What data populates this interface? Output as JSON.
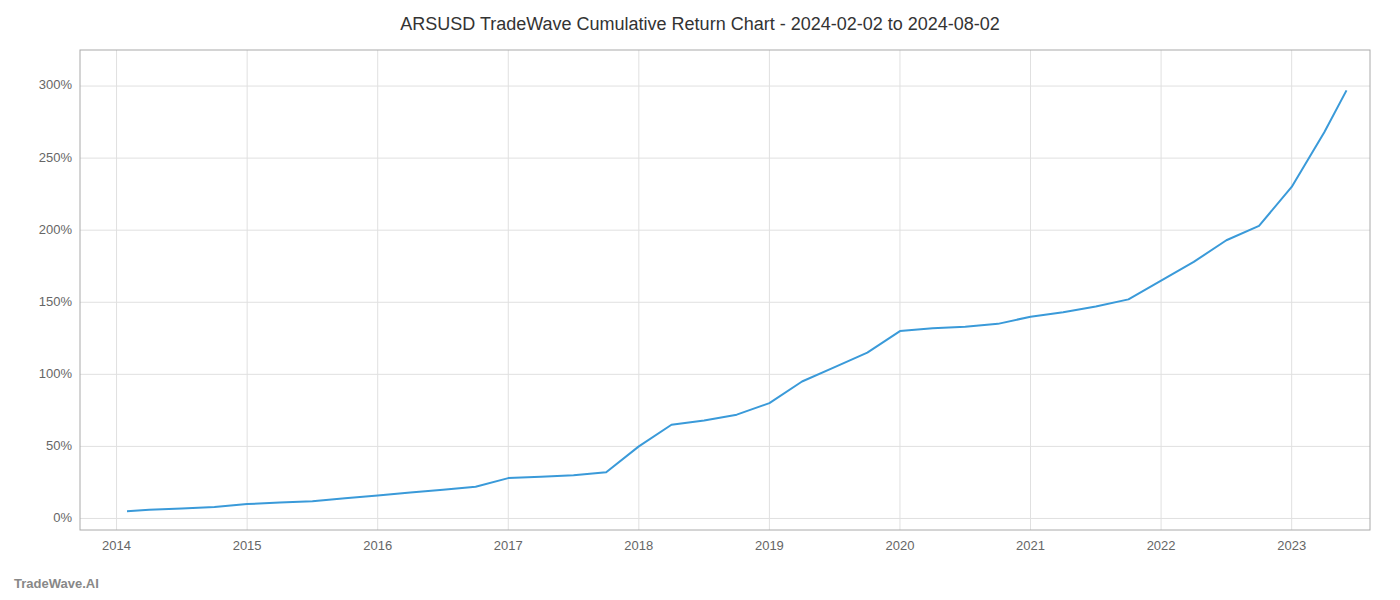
{
  "chart_data": {
    "type": "line",
    "title": "ARSUSD TradeWave Cumulative Return Chart - 2024-02-02 to 2024-08-02",
    "annotations": [
      "TradeWave.AI"
    ],
    "color": "#3a9ad9",
    "grid": true,
    "x": [
      2014.08,
      2014.25,
      2014.5,
      2014.75,
      2015.0,
      2015.25,
      2015.5,
      2015.75,
      2016.0,
      2016.25,
      2016.5,
      2016.75,
      2017.0,
      2017.25,
      2017.5,
      2017.75,
      2018.0,
      2018.25,
      2018.5,
      2018.75,
      2019.0,
      2019.25,
      2019.5,
      2019.75,
      2020.0,
      2020.25,
      2020.5,
      2020.75,
      2021.0,
      2021.25,
      2021.5,
      2021.75,
      2022.0,
      2022.25,
      2022.5,
      2022.75,
      2023.0,
      2023.25,
      2023.42
    ],
    "values": [
      5,
      6,
      7,
      8,
      10,
      11,
      12,
      14,
      16,
      18,
      20,
      22,
      28,
      29,
      30,
      32,
      50,
      65,
      68,
      72,
      80,
      95,
      105,
      115,
      130,
      132,
      133,
      135,
      140,
      143,
      147,
      152,
      165,
      178,
      193,
      203,
      230,
      268,
      297
    ],
    "xlim": [
      2013.72,
      2023.6
    ],
    "xticks": [
      2014,
      2015,
      2016,
      2017,
      2018,
      2019,
      2020,
      2021,
      2022,
      2023
    ],
    "ylim": [
      -8,
      325
    ],
    "yticks": [
      {
        "value": 0,
        "label": "0%"
      },
      {
        "value": 50,
        "label": "50%"
      },
      {
        "value": 100,
        "label": "100%"
      },
      {
        "value": 150,
        "label": "150%"
      },
      {
        "value": 200,
        "label": "200%"
      },
      {
        "value": 250,
        "label": "250%"
      },
      {
        "value": 300,
        "label": "300%"
      }
    ]
  }
}
